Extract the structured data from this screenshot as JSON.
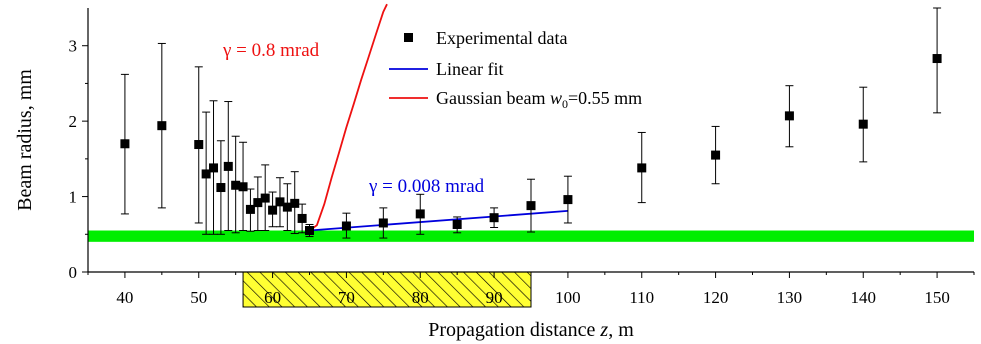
{
  "chart_data": {
    "type": "scatter",
    "xlabel": "Propagation distance z, m",
    "xlabel_main": "Propagation distance ",
    "xlabel_var": "z",
    "xlabel_unit": ", m",
    "ylabel": "Beam radius, mm",
    "xlim": [
      35,
      155
    ],
    "ylim": [
      0,
      3.5
    ],
    "xticks": [
      40,
      50,
      60,
      70,
      80,
      90,
      100,
      110,
      120,
      130,
      140,
      150
    ],
    "yticks": [
      0,
      1,
      2,
      3
    ],
    "legend_position": "top-center",
    "legend": {
      "experimental": "Experimental data",
      "linear": "Linear fit",
      "gaussian_prefix": "Gaussian beam ",
      "gaussian_var": "w",
      "gaussian_sub": "0",
      "gaussian_suffix": "=0.55 mm"
    },
    "annotations": {
      "gaussian_divergence": "γ = 0.8 mrad",
      "linear_divergence": "γ = 0.008 mrad"
    },
    "series": [
      {
        "name": "Experimental data",
        "kind": "scatter",
        "color": "#000000",
        "points": [
          {
            "x": 40,
            "y": 1.7,
            "lo": 0.77,
            "hi": 2.62
          },
          {
            "x": 45,
            "y": 1.94,
            "lo": 0.85,
            "hi": 3.03
          },
          {
            "x": 50,
            "y": 1.69,
            "lo": 0.65,
            "hi": 2.72
          },
          {
            "x": 51,
            "y": 1.3,
            "lo": 0.5,
            "hi": 2.12
          },
          {
            "x": 52,
            "y": 1.38,
            "lo": 0.5,
            "hi": 2.27
          },
          {
            "x": 53,
            "y": 1.12,
            "lo": 0.5,
            "hi": 1.74
          },
          {
            "x": 54,
            "y": 1.4,
            "lo": 0.55,
            "hi": 2.26
          },
          {
            "x": 55,
            "y": 1.15,
            "lo": 0.52,
            "hi": 1.8
          },
          {
            "x": 56,
            "y": 1.13,
            "lo": 0.55,
            "hi": 1.72
          },
          {
            "x": 57,
            "y": 0.83,
            "lo": 0.54,
            "hi": 1.1
          },
          {
            "x": 58,
            "y": 0.92,
            "lo": 0.55,
            "hi": 1.26
          },
          {
            "x": 59,
            "y": 0.98,
            "lo": 0.55,
            "hi": 1.42
          },
          {
            "x": 60,
            "y": 0.82,
            "lo": 0.6,
            "hi": 1.06
          },
          {
            "x": 61,
            "y": 0.93,
            "lo": 0.6,
            "hi": 1.25
          },
          {
            "x": 62,
            "y": 0.86,
            "lo": 0.55,
            "hi": 1.17
          },
          {
            "x": 63,
            "y": 0.91,
            "lo": 0.51,
            "hi": 1.33
          },
          {
            "x": 64,
            "y": 0.71,
            "lo": 0.52,
            "hi": 0.9
          },
          {
            "x": 65,
            "y": 0.55,
            "lo": 0.47,
            "hi": 0.63
          },
          {
            "x": 70,
            "y": 0.61,
            "lo": 0.45,
            "hi": 0.78
          },
          {
            "x": 75,
            "y": 0.65,
            "lo": 0.45,
            "hi": 0.85
          },
          {
            "x": 80,
            "y": 0.77,
            "lo": 0.5,
            "hi": 1.03
          },
          {
            "x": 85,
            "y": 0.63,
            "lo": 0.52,
            "hi": 0.73
          },
          {
            "x": 90,
            "y": 0.72,
            "lo": 0.59,
            "hi": 0.85
          },
          {
            "x": 95,
            "y": 0.88,
            "lo": 0.53,
            "hi": 1.23
          },
          {
            "x": 100,
            "y": 0.96,
            "lo": 0.65,
            "hi": 1.27
          },
          {
            "x": 110,
            "y": 1.38,
            "lo": 0.92,
            "hi": 1.85
          },
          {
            "x": 120,
            "y": 1.55,
            "lo": 1.17,
            "hi": 1.93
          },
          {
            "x": 130,
            "y": 2.07,
            "lo": 1.66,
            "hi": 2.47
          },
          {
            "x": 140,
            "y": 1.96,
            "lo": 1.46,
            "hi": 2.45
          },
          {
            "x": 150,
            "y": 2.83,
            "lo": 2.11,
            "hi": 3.5
          }
        ]
      },
      {
        "name": "Linear fit",
        "kind": "line",
        "color": "#0000dd",
        "x": [
          65,
          100
        ],
        "y": [
          0.55,
          0.81
        ]
      },
      {
        "name": "Gaussian beam w0=0.55 mm",
        "kind": "line",
        "color": "#ee1111",
        "x": [
          65,
          66,
          67,
          68,
          69,
          70,
          71,
          72,
          73,
          74,
          75,
          75.5
        ],
        "y": [
          0.55,
          0.62,
          0.9,
          1.25,
          1.58,
          1.92,
          2.23,
          2.55,
          2.85,
          3.15,
          3.45,
          3.55
        ]
      }
    ],
    "shaded_regions": [
      {
        "type": "hband",
        "y": [
          0.4,
          0.55
        ],
        "color": "#00ee00"
      },
      {
        "type": "hatched_xrange",
        "x": [
          56,
          95
        ],
        "color": "#ffff00"
      }
    ],
    "grid": false
  }
}
